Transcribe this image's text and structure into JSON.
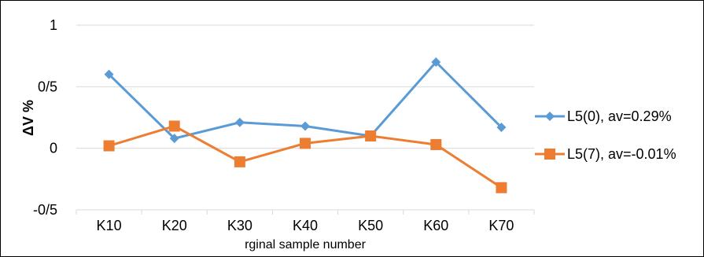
{
  "chart_data": {
    "type": "line",
    "categories": [
      "K10",
      "K20",
      "K30",
      "K40",
      "K50",
      "K60",
      "K70"
    ],
    "series": [
      {
        "name": "L5(0), av=0.29%",
        "values": [
          0.6,
          0.08,
          0.21,
          0.18,
          0.1,
          0.7,
          0.17
        ],
        "color": "#5B9BD5",
        "marker": "diamond"
      },
      {
        "name": "L5(7), av=-0.01%",
        "values": [
          0.02,
          0.18,
          -0.11,
          0.04,
          0.1,
          0.03,
          -0.32
        ],
        "color": "#ED7D31",
        "marker": "square"
      }
    ],
    "yticks": [
      1,
      0.5,
      0,
      -0.5
    ],
    "ytick_labels": [
      "1",
      "0/5",
      "0",
      "-0/5"
    ],
    "ylim": [
      -0.5,
      1
    ],
    "ylabel": "ΔV %",
    "xlabel": "rginal sample number",
    "grid": true,
    "legend_position": "right"
  }
}
